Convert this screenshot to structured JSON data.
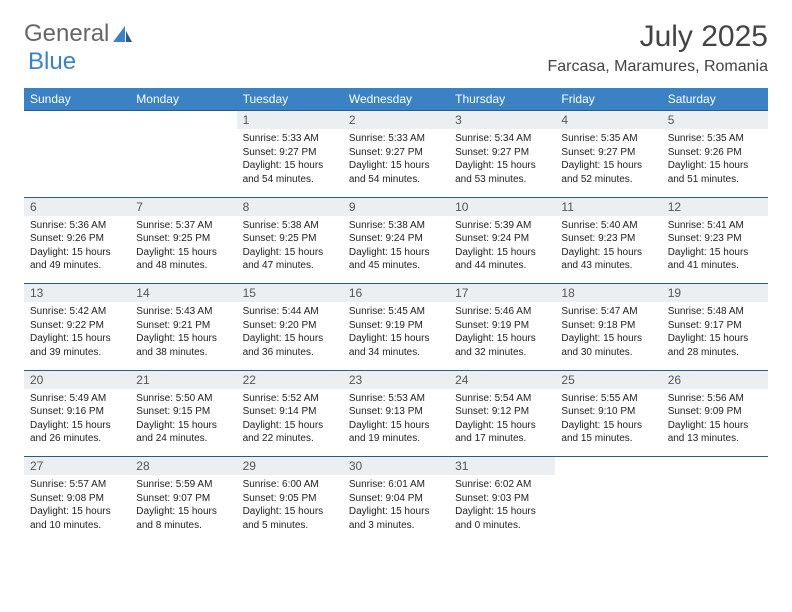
{
  "logo": {
    "part1": "General",
    "part2": "Blue"
  },
  "title": "July 2025",
  "location": "Farcasa, Maramures, Romania",
  "colors": {
    "header_bg": "#3b82c4",
    "header_text": "#ffffff",
    "daynum_bg": "#eceff1",
    "daynum_text": "#555555",
    "border": "#2a5a8a",
    "text": "#222222",
    "page_bg": "#ffffff"
  },
  "day_headers": [
    "Sunday",
    "Monday",
    "Tuesday",
    "Wednesday",
    "Thursday",
    "Friday",
    "Saturday"
  ],
  "weeks": [
    [
      null,
      null,
      {
        "n": "1",
        "sr": "5:33 AM",
        "ss": "9:27 PM",
        "dl": "15 hours and 54 minutes."
      },
      {
        "n": "2",
        "sr": "5:33 AM",
        "ss": "9:27 PM",
        "dl": "15 hours and 54 minutes."
      },
      {
        "n": "3",
        "sr": "5:34 AM",
        "ss": "9:27 PM",
        "dl": "15 hours and 53 minutes."
      },
      {
        "n": "4",
        "sr": "5:35 AM",
        "ss": "9:27 PM",
        "dl": "15 hours and 52 minutes."
      },
      {
        "n": "5",
        "sr": "5:35 AM",
        "ss": "9:26 PM",
        "dl": "15 hours and 51 minutes."
      }
    ],
    [
      {
        "n": "6",
        "sr": "5:36 AM",
        "ss": "9:26 PM",
        "dl": "15 hours and 49 minutes."
      },
      {
        "n": "7",
        "sr": "5:37 AM",
        "ss": "9:25 PM",
        "dl": "15 hours and 48 minutes."
      },
      {
        "n": "8",
        "sr": "5:38 AM",
        "ss": "9:25 PM",
        "dl": "15 hours and 47 minutes."
      },
      {
        "n": "9",
        "sr": "5:38 AM",
        "ss": "9:24 PM",
        "dl": "15 hours and 45 minutes."
      },
      {
        "n": "10",
        "sr": "5:39 AM",
        "ss": "9:24 PM",
        "dl": "15 hours and 44 minutes."
      },
      {
        "n": "11",
        "sr": "5:40 AM",
        "ss": "9:23 PM",
        "dl": "15 hours and 43 minutes."
      },
      {
        "n": "12",
        "sr": "5:41 AM",
        "ss": "9:23 PM",
        "dl": "15 hours and 41 minutes."
      }
    ],
    [
      {
        "n": "13",
        "sr": "5:42 AM",
        "ss": "9:22 PM",
        "dl": "15 hours and 39 minutes."
      },
      {
        "n": "14",
        "sr": "5:43 AM",
        "ss": "9:21 PM",
        "dl": "15 hours and 38 minutes."
      },
      {
        "n": "15",
        "sr": "5:44 AM",
        "ss": "9:20 PM",
        "dl": "15 hours and 36 minutes."
      },
      {
        "n": "16",
        "sr": "5:45 AM",
        "ss": "9:19 PM",
        "dl": "15 hours and 34 minutes."
      },
      {
        "n": "17",
        "sr": "5:46 AM",
        "ss": "9:19 PM",
        "dl": "15 hours and 32 minutes."
      },
      {
        "n": "18",
        "sr": "5:47 AM",
        "ss": "9:18 PM",
        "dl": "15 hours and 30 minutes."
      },
      {
        "n": "19",
        "sr": "5:48 AM",
        "ss": "9:17 PM",
        "dl": "15 hours and 28 minutes."
      }
    ],
    [
      {
        "n": "20",
        "sr": "5:49 AM",
        "ss": "9:16 PM",
        "dl": "15 hours and 26 minutes."
      },
      {
        "n": "21",
        "sr": "5:50 AM",
        "ss": "9:15 PM",
        "dl": "15 hours and 24 minutes."
      },
      {
        "n": "22",
        "sr": "5:52 AM",
        "ss": "9:14 PM",
        "dl": "15 hours and 22 minutes."
      },
      {
        "n": "23",
        "sr": "5:53 AM",
        "ss": "9:13 PM",
        "dl": "15 hours and 19 minutes."
      },
      {
        "n": "24",
        "sr": "5:54 AM",
        "ss": "9:12 PM",
        "dl": "15 hours and 17 minutes."
      },
      {
        "n": "25",
        "sr": "5:55 AM",
        "ss": "9:10 PM",
        "dl": "15 hours and 15 minutes."
      },
      {
        "n": "26",
        "sr": "5:56 AM",
        "ss": "9:09 PM",
        "dl": "15 hours and 13 minutes."
      }
    ],
    [
      {
        "n": "27",
        "sr": "5:57 AM",
        "ss": "9:08 PM",
        "dl": "15 hours and 10 minutes."
      },
      {
        "n": "28",
        "sr": "5:59 AM",
        "ss": "9:07 PM",
        "dl": "15 hours and 8 minutes."
      },
      {
        "n": "29",
        "sr": "6:00 AM",
        "ss": "9:05 PM",
        "dl": "15 hours and 5 minutes."
      },
      {
        "n": "30",
        "sr": "6:01 AM",
        "ss": "9:04 PM",
        "dl": "15 hours and 3 minutes."
      },
      {
        "n": "31",
        "sr": "6:02 AM",
        "ss": "9:03 PM",
        "dl": "15 hours and 0 minutes."
      },
      null,
      null
    ]
  ],
  "labels": {
    "sunrise": "Sunrise: ",
    "sunset": "Sunset: ",
    "daylight": "Daylight: "
  }
}
